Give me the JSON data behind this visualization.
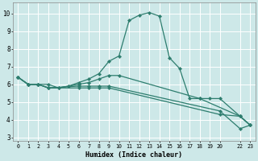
{
  "xlabel": "Humidex (Indice chaleur)",
  "background_color": "#cde8e8",
  "grid_color": "#b0d8d8",
  "line_color": "#2d7d6e",
  "xlim": [
    -0.5,
    23.5
  ],
  "ylim": [
    2.8,
    10.6
  ],
  "yticks": [
    3,
    4,
    5,
    6,
    7,
    8,
    9,
    10
  ],
  "xticks": [
    0,
    1,
    2,
    3,
    4,
    5,
    6,
    7,
    8,
    9,
    10,
    11,
    12,
    13,
    14,
    15,
    16,
    17,
    18,
    19,
    20,
    22,
    23
  ],
  "xtick_labels": [
    "0",
    "1",
    "2",
    "3",
    "4",
    "5",
    "6",
    "7",
    "8",
    "9",
    "10",
    "11",
    "12",
    "13",
    "14",
    "15",
    "16",
    "17",
    "18",
    "19",
    "20",
    "22",
    "23"
  ],
  "lines": [
    {
      "x": [
        0,
        1,
        2,
        3,
        4,
        5,
        6,
        7,
        8,
        9,
        10,
        11,
        12,
        13,
        14,
        15,
        16,
        17,
        18,
        22,
        23
      ],
      "y": [
        6.4,
        6.0,
        6.0,
        6.0,
        5.8,
        5.9,
        6.1,
        6.3,
        6.6,
        7.3,
        7.6,
        9.6,
        9.9,
        10.05,
        9.85,
        7.5,
        6.9,
        5.2,
        5.2,
        4.2,
        3.7
      ]
    },
    {
      "x": [
        0,
        1,
        2,
        3,
        4,
        5,
        6,
        7,
        8,
        9,
        10,
        18,
        19,
        20,
        22,
        23
      ],
      "y": [
        6.4,
        6.0,
        6.0,
        5.8,
        5.8,
        5.9,
        6.0,
        6.1,
        6.3,
        6.5,
        6.5,
        5.2,
        5.2,
        5.2,
        4.2,
        3.7
      ]
    },
    {
      "x": [
        0,
        1,
        2,
        3,
        6,
        7,
        8,
        9,
        20,
        22,
        23
      ],
      "y": [
        6.4,
        6.0,
        6.0,
        5.8,
        5.9,
        5.9,
        5.9,
        5.9,
        4.5,
        3.5,
        3.7
      ]
    },
    {
      "x": [
        0,
        1,
        2,
        3,
        6,
        7,
        8,
        9,
        20,
        22,
        23
      ],
      "y": [
        6.4,
        6.0,
        6.0,
        5.8,
        5.8,
        5.8,
        5.8,
        5.8,
        4.3,
        4.2,
        3.7
      ]
    }
  ]
}
